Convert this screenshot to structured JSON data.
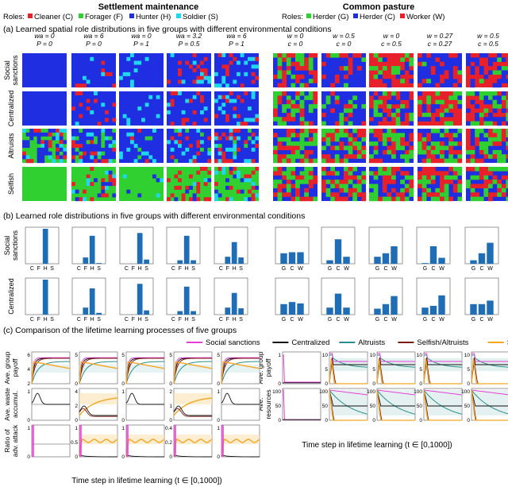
{
  "colors": {
    "cleaner": "#e8202a",
    "forager": "#2fd02f",
    "hunter": "#1f2ee0",
    "soldier": "#1fd8f0",
    "herder_g": "#2fd02f",
    "herder_c": "#1f2ee0",
    "worker": "#e8202a",
    "bar": "#1f6db5",
    "social_sanctions": "#e83ed8",
    "centralized": "#111111",
    "altruists": "#2a8f8c",
    "selfish_altruists": "#7a1a12",
    "selfish": "#f5a623"
  },
  "headers": {
    "settlement": "Settlement maintenance",
    "pasture": "Common pasture"
  },
  "legend_left": {
    "prefix": "Roles:",
    "items": [
      {
        "label": "Cleaner (C)",
        "color": "#e8202a"
      },
      {
        "label": "Forager (F)",
        "color": "#2fd02f"
      },
      {
        "label": "Hunter (H)",
        "color": "#1f2ee0"
      },
      {
        "label": "Soldier (S)",
        "color": "#1fd8f0"
      }
    ]
  },
  "legend_right": {
    "prefix": "Roles:",
    "items": [
      {
        "label": "Herder (G)",
        "color": "#2fd02f"
      },
      {
        "label": "Herder (C)",
        "color": "#1f2ee0"
      },
      {
        "label": "Worker (W)",
        "color": "#e8202a"
      }
    ]
  },
  "section_a": {
    "title": "(a) Learned spatial role distributions in five groups with different environmental conditions",
    "rows": [
      "Social sanctions",
      "Centralized",
      "Altruists",
      "Selfish"
    ],
    "cond_left": [
      [
        "wa = 0",
        "P = 0"
      ],
      [
        "wa = 6",
        "P = 0"
      ],
      [
        "wa = 0",
        "P = 1"
      ],
      [
        "wa = 3.2",
        "P = 0.5"
      ],
      [
        "wa = 6",
        "P = 1"
      ]
    ],
    "cond_right": [
      [
        "w = 0",
        "c = 0"
      ],
      [
        "w = 0.5",
        "c = 0"
      ],
      [
        "w = 0",
        "c = 0.5"
      ],
      [
        "w = 0.27",
        "c = 0.27"
      ],
      [
        "w = 0.5",
        "c = 0.5"
      ]
    ]
  },
  "section_b": {
    "title": "(b) Learned role distributions in five groups with different environmental conditions",
    "rows": [
      "Social sanctions",
      "Centralized"
    ],
    "cats_left": [
      "C",
      "F",
      "H",
      "S"
    ],
    "cats_right": [
      "G",
      "C",
      "W"
    ]
  },
  "section_c": {
    "title": "(c) Comparison of the lifetime learning processes of five groups",
    "legend": [
      {
        "label": "Social sanctions",
        "color": "#e83ed8"
      },
      {
        "label": "Centralized",
        "color": "#111111"
      },
      {
        "label": "Altruists",
        "color": "#2a8f8c"
      },
      {
        "label": "Selfish/Altruists",
        "color": "#7a1a12"
      },
      {
        "label": "Selfish",
        "color": "#f5a623"
      }
    ],
    "ylabels_left": [
      [
        "Ave. group",
        "payoff"
      ],
      [
        "Ave. waste",
        "accumul."
      ],
      [
        "Ratio of",
        "adv. attack"
      ]
    ],
    "ylabels_right": [
      [
        "Ave. group",
        "payoff"
      ],
      [
        "Ave.",
        "resources"
      ]
    ],
    "xlabel": "Time step in lifetime learning (t ∈ [0,1000])",
    "yticks_left": [
      [
        [
          "6",
          "4",
          "2"
        ],
        [
          "5",
          "0"
        ],
        [
          "5",
          "0"
        ],
        [
          "5",
          "0"
        ],
        [
          "5",
          "0"
        ]
      ],
      [
        [
          "1",
          "0"
        ],
        [
          "4",
          "2",
          "0"
        ],
        [
          "1",
          "0"
        ],
        [
          "2",
          "1",
          "0"
        ],
        [
          "1",
          "0"
        ]
      ],
      [
        [
          "1",
          "0"
        ],
        [
          "1",
          "0.5",
          "0"
        ],
        [
          "1",
          "0"
        ],
        [
          "0.4",
          "0.2",
          "0"
        ],
        [
          "1",
          "0"
        ]
      ]
    ],
    "yticks_right": [
      [
        [
          "1",
          "0"
        ],
        [
          "10",
          "5",
          "0"
        ],
        [
          "10",
          "5",
          "0"
        ],
        [
          "10",
          "5",
          "0"
        ],
        [
          "10",
          "5",
          "0"
        ]
      ],
      [
        [
          "100",
          "50",
          "0"
        ],
        [
          "100",
          "50",
          "0"
        ],
        [
          "100",
          "50",
          "0"
        ],
        [
          "100",
          "50",
          "0"
        ],
        [
          "100",
          "50",
          "0"
        ]
      ]
    ]
  },
  "chart_data": [
    {
      "type": "bar",
      "title": "Learned role distributions — Settlement maintenance",
      "categories": [
        "C",
        "F",
        "H",
        "S"
      ],
      "panels": [
        {
          "group": "Social sanctions",
          "condition": "wa = 0, P = 0",
          "values": [
            0.0,
            0.0,
            1.0,
            0.0
          ]
        },
        {
          "group": "Social sanctions",
          "condition": "wa = 6, P = 0",
          "values": [
            0.0,
            0.18,
            0.8,
            0.02
          ]
        },
        {
          "group": "Social sanctions",
          "condition": "wa = 0, P = 1",
          "values": [
            0.0,
            0.0,
            0.88,
            0.12
          ]
        },
        {
          "group": "Social sanctions",
          "condition": "wa = 3.2, P = 0.5",
          "values": [
            0.0,
            0.1,
            0.8,
            0.1
          ]
        },
        {
          "group": "Social sanctions",
          "condition": "wa = 6, P = 1",
          "values": [
            0.0,
            0.2,
            0.62,
            0.18
          ]
        },
        {
          "group": "Centralized",
          "condition": "wa = 0, P = 0",
          "values": [
            0.0,
            0.0,
            1.0,
            0.0
          ]
        },
        {
          "group": "Centralized",
          "condition": "wa = 6, P = 0",
          "values": [
            0.0,
            0.2,
            0.75,
            0.05
          ]
        },
        {
          "group": "Centralized",
          "condition": "wa = 0, P = 1",
          "values": [
            0.0,
            0.0,
            0.88,
            0.12
          ]
        },
        {
          "group": "Centralized",
          "condition": "wa = 3.2, P = 0.5",
          "values": [
            0.0,
            0.1,
            0.8,
            0.1
          ]
        },
        {
          "group": "Centralized",
          "condition": "wa = 6, P = 1",
          "values": [
            0.0,
            0.2,
            0.62,
            0.18
          ]
        }
      ]
    },
    {
      "type": "bar",
      "title": "Learned role distributions — Common pasture",
      "categories": [
        "G",
        "C",
        "W"
      ],
      "panels": [
        {
          "group": "Social sanctions",
          "condition": "w = 0, c = 0",
          "values": [
            0.3,
            0.33,
            0.33
          ]
        },
        {
          "group": "Social sanctions",
          "condition": "w = 0.5, c = 0",
          "values": [
            0.1,
            0.7,
            0.2
          ]
        },
        {
          "group": "Social sanctions",
          "condition": "w = 0, c = 0.5",
          "values": [
            0.2,
            0.3,
            0.5
          ]
        },
        {
          "group": "Social sanctions",
          "condition": "w = 0.27, c = 0.27",
          "values": [
            0.02,
            0.5,
            0.17
          ]
        },
        {
          "group": "Social sanctions",
          "condition": "w = 0.5, c = 0.5",
          "values": [
            0.1,
            0.3,
            0.6
          ]
        },
        {
          "group": "Centralized",
          "condition": "w = 0, c = 0",
          "values": [
            0.3,
            0.36,
            0.32
          ]
        },
        {
          "group": "Centralized",
          "condition": "w = 0.5, c = 0",
          "values": [
            0.2,
            0.6,
            0.2
          ]
        },
        {
          "group": "Centralized",
          "condition": "w = 0, c = 0.5",
          "values": [
            0.17,
            0.3,
            0.53
          ]
        },
        {
          "group": "Centralized",
          "condition": "w = 0.27, c = 0.27",
          "values": [
            0.2,
            0.25,
            0.55
          ]
        },
        {
          "group": "Centralized",
          "condition": "w = 0.5, c = 0.5",
          "values": [
            0.3,
            0.3,
            0.4
          ]
        }
      ]
    },
    {
      "type": "line",
      "title": "Lifetime learning processes",
      "xlabel": "Time step in lifetime learning (t ∈ [0,1000])",
      "xlim": [
        0,
        1000
      ],
      "series": [
        {
          "name": "Social sanctions"
        },
        {
          "name": "Centralized"
        },
        {
          "name": "Altruists"
        },
        {
          "name": "Selfish/Altruists"
        },
        {
          "name": "Selfish"
        }
      ],
      "curves": {
        "settlement_payoff": {
          "ylim": [
            0,
            6
          ],
          "final": [
            5.0,
            5.0,
            4.4,
            5.0,
            2.8
          ]
        },
        "settlement_waste": {
          "ylim": [
            0,
            4
          ],
          "final": [
            0.0,
            0.3,
            0.3,
            0.3,
            3.0
          ]
        },
        "settlement_attack": {
          "ylim": [
            0,
            1
          ],
          "final": [
            0.0,
            0.0,
            0.0,
            0.0,
            0.6
          ]
        },
        "pasture_payoff": {
          "ylim": [
            0,
            10
          ],
          "final": [
            8.0,
            6.0,
            5.0,
            0.0,
            0.0
          ]
        },
        "pasture_resources": {
          "ylim": [
            0,
            100
          ],
          "final": [
            80,
            45,
            30,
            0,
            0
          ]
        }
      }
    }
  ]
}
